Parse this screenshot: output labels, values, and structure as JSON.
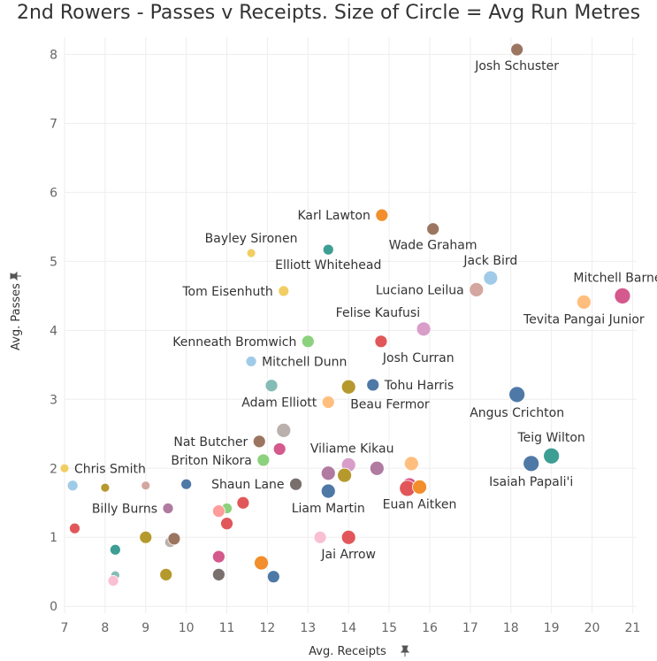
{
  "chart_data": {
    "type": "scatter",
    "title": "2nd Rowers - Passes v Receipts. Size of Circle = Avg Run Metres",
    "xlabel": "Avg. Receipts",
    "ylabel": "Avg. Passes",
    "axis_pin_icon": "pin-icon",
    "xlim": [
      7,
      21.1
    ],
    "ylim": [
      -0.1,
      8.25
    ],
    "xticks": [
      "7",
      "8",
      "9",
      "10",
      "11",
      "12",
      "13",
      "14",
      "15",
      "16",
      "17",
      "18",
      "19",
      "20",
      "21"
    ],
    "yticks": [
      "0",
      "1",
      "2",
      "3",
      "4",
      "5",
      "6",
      "7",
      "8"
    ],
    "grid": true,
    "points": [
      {
        "x": 18.15,
        "y": 8.07,
        "r": 7,
        "color": "#9c7561",
        "label": "Josh Schuster",
        "label_pos": "below"
      },
      {
        "x": 14.82,
        "y": 5.67,
        "r": 7,
        "color": "#f28e2b",
        "label": "Karl Lawton",
        "label_pos": "left"
      },
      {
        "x": 16.08,
        "y": 5.47,
        "r": 7,
        "color": "#9c7561",
        "label": "Wade Graham",
        "label_pos": "below"
      },
      {
        "x": 11.6,
        "y": 5.12,
        "r": 5,
        "color": "#f1ce63",
        "label": "Bayley Sironen",
        "label_pos": "above"
      },
      {
        "x": 13.5,
        "y": 5.17,
        "r": 6,
        "color": "#3d9e94",
        "label": "Elliott Whitehead",
        "label_pos": "below"
      },
      {
        "x": 17.5,
        "y": 4.76,
        "r": 8,
        "color": "#a0cbe8",
        "label": "Jack Bird",
        "label_pos": "above"
      },
      {
        "x": 17.15,
        "y": 4.59,
        "r": 8,
        "color": "#d4a6a0",
        "label": "Luciano Leilua",
        "label_pos": "left"
      },
      {
        "x": 20.75,
        "y": 4.5,
        "r": 9,
        "color": "#d4598c",
        "label": "Mitchell Barnett",
        "label_pos": "above"
      },
      {
        "x": 19.8,
        "y": 4.41,
        "r": 8,
        "color": "#ffbe7d",
        "label": "Tevita Pangai Junior",
        "label_pos": "below"
      },
      {
        "x": 12.4,
        "y": 4.57,
        "r": 6,
        "color": "#f1ce63",
        "label": "Tom Eisenhuth",
        "label_pos": "left"
      },
      {
        "x": 15.85,
        "y": 4.02,
        "r": 8,
        "color": "#d89ec9",
        "label": "Felise Kaufusi",
        "label_pos": "aboveleft"
      },
      {
        "x": 14.8,
        "y": 3.84,
        "r": 7,
        "color": "#e15759",
        "label": "Josh Curran",
        "label_pos": "belowright"
      },
      {
        "x": 13.0,
        "y": 3.84,
        "r": 7,
        "color": "#8cd17d",
        "label": "Kenneath Bromwich",
        "label_pos": "left"
      },
      {
        "x": 11.6,
        "y": 3.55,
        "r": 6,
        "color": "#a0cbe8",
        "label": "Mitchell Dunn",
        "label_pos": "right"
      },
      {
        "x": 14.6,
        "y": 3.21,
        "r": 7,
        "color": "#4e79a7",
        "label": "Tohu Harris",
        "label_pos": "right"
      },
      {
        "x": 14.0,
        "y": 3.18,
        "r": 8,
        "color": "#b6992d",
        "label": "Beau Fermor",
        "label_pos": "belowright"
      },
      {
        "x": 12.1,
        "y": 3.2,
        "r": 7,
        "color": "#86bcb6",
        "label": "",
        "label_pos": "none"
      },
      {
        "x": 13.5,
        "y": 2.96,
        "r": 7,
        "color": "#ffbe7d",
        "label": "Adam Elliott",
        "label_pos": "left"
      },
      {
        "x": 18.15,
        "y": 3.07,
        "r": 9,
        "color": "#4e79a7",
        "label": "Angus Crichton",
        "label_pos": "below"
      },
      {
        "x": 11.8,
        "y": 2.39,
        "r": 7,
        "color": "#9c7561",
        "label": "Nat Butcher",
        "label_pos": "left"
      },
      {
        "x": 12.4,
        "y": 2.55,
        "r": 8,
        "color": "#bab0ac",
        "label": "",
        "label_pos": "none"
      },
      {
        "x": 12.3,
        "y": 2.28,
        "r": 7,
        "color": "#d4598c",
        "label": "",
        "label_pos": "none"
      },
      {
        "x": 11.9,
        "y": 2.12,
        "r": 7,
        "color": "#8cd17d",
        "label": "Briton Nikora",
        "label_pos": "left"
      },
      {
        "x": 19.0,
        "y": 2.18,
        "r": 9,
        "color": "#3d9e94",
        "label": "Teig Wilton",
        "label_pos": "above"
      },
      {
        "x": 18.5,
        "y": 2.07,
        "r": 9,
        "color": "#4e79a7",
        "label": "Isaiah Papali'i",
        "label_pos": "below"
      },
      {
        "x": 14.0,
        "y": 2.05,
        "r": 8,
        "color": "#d89ec9",
        "label": "Viliame Kikau",
        "label_pos": "aboveright"
      },
      {
        "x": 13.5,
        "y": 1.93,
        "r": 8,
        "color": "#b07aa1",
        "label": "",
        "label_pos": "none"
      },
      {
        "x": 13.9,
        "y": 1.9,
        "r": 8,
        "color": "#b6992d",
        "label": "",
        "label_pos": "none"
      },
      {
        "x": 14.7,
        "y": 2.0,
        "r": 8,
        "color": "#b07aa1",
        "label": "",
        "label_pos": "none"
      },
      {
        "x": 15.55,
        "y": 2.07,
        "r": 8,
        "color": "#ffbe7d",
        "label": "",
        "label_pos": "none"
      },
      {
        "x": 15.5,
        "y": 1.76,
        "r": 8,
        "color": "#d4598c",
        "label": "",
        "label_pos": "none"
      },
      {
        "x": 15.45,
        "y": 1.71,
        "r": 9,
        "color": "#e15759",
        "label": "",
        "label_pos": "none"
      },
      {
        "x": 15.75,
        "y": 1.73,
        "r": 8,
        "color": "#f28e2b",
        "label": "Euan Aitken",
        "label_pos": "below"
      },
      {
        "x": 12.7,
        "y": 1.77,
        "r": 7,
        "color": "#79706e",
        "label": "Shaun Lane",
        "label_pos": "left"
      },
      {
        "x": 13.5,
        "y": 1.67,
        "r": 8,
        "color": "#4e79a7",
        "label": "Liam Martin",
        "label_pos": "below"
      },
      {
        "x": 7.0,
        "y": 2.0,
        "r": 5,
        "color": "#f1ce63",
        "label": "Chris Smith",
        "label_pos": "right"
      },
      {
        "x": 7.2,
        "y": 1.75,
        "r": 6,
        "color": "#a0cbe8",
        "label": "",
        "label_pos": "none"
      },
      {
        "x": 8.0,
        "y": 1.72,
        "r": 5,
        "color": "#b6992d",
        "label": "",
        "label_pos": "none"
      },
      {
        "x": 9.0,
        "y": 1.75,
        "r": 5,
        "color": "#d4a6a0",
        "label": "",
        "label_pos": "none"
      },
      {
        "x": 10.0,
        "y": 1.77,
        "r": 6,
        "color": "#4e79a7",
        "label": "",
        "label_pos": "none"
      },
      {
        "x": 9.55,
        "y": 1.42,
        "r": 6,
        "color": "#b07aa1",
        "label": "Billy Burns",
        "label_pos": "left"
      },
      {
        "x": 11.4,
        "y": 1.5,
        "r": 7,
        "color": "#e15759",
        "label": "",
        "label_pos": "none"
      },
      {
        "x": 11.0,
        "y": 1.42,
        "r": 6,
        "color": "#8cd17d",
        "label": "",
        "label_pos": "none"
      },
      {
        "x": 10.8,
        "y": 1.38,
        "r": 7,
        "color": "#ff9d9a",
        "label": "",
        "label_pos": "none"
      },
      {
        "x": 11.0,
        "y": 1.2,
        "r": 7,
        "color": "#e15759",
        "label": "",
        "label_pos": "none"
      },
      {
        "x": 7.25,
        "y": 1.13,
        "r": 6,
        "color": "#e15759",
        "label": "",
        "label_pos": "none"
      },
      {
        "x": 9.0,
        "y": 1.0,
        "r": 7,
        "color": "#b6992d",
        "label": "",
        "label_pos": "none"
      },
      {
        "x": 9.6,
        "y": 0.93,
        "r": 6,
        "color": "#bab0ac",
        "label": "",
        "label_pos": "none"
      },
      {
        "x": 9.7,
        "y": 0.98,
        "r": 7,
        "color": "#9c7561",
        "label": "",
        "label_pos": "none"
      },
      {
        "x": 8.25,
        "y": 0.82,
        "r": 6,
        "color": "#3d9e94",
        "label": "",
        "label_pos": "none"
      },
      {
        "x": 13.3,
        "y": 1.0,
        "r": 7,
        "color": "#fabfd2",
        "label": "",
        "label_pos": "none"
      },
      {
        "x": 14.0,
        "y": 1.0,
        "r": 8,
        "color": "#e15759",
        "label": "Jai Arrow",
        "label_pos": "below"
      },
      {
        "x": 10.8,
        "y": 0.72,
        "r": 7,
        "color": "#d4598c",
        "label": "",
        "label_pos": "none"
      },
      {
        "x": 11.85,
        "y": 0.63,
        "r": 8,
        "color": "#f28e2b",
        "label": "",
        "label_pos": "none"
      },
      {
        "x": 8.25,
        "y": 0.45,
        "r": 5,
        "color": "#86bcb6",
        "label": "",
        "label_pos": "none"
      },
      {
        "x": 8.2,
        "y": 0.37,
        "r": 6,
        "color": "#fabfd2",
        "label": "",
        "label_pos": "none"
      },
      {
        "x": 9.5,
        "y": 0.46,
        "r": 7,
        "color": "#b6992d",
        "label": "",
        "label_pos": "none"
      },
      {
        "x": 10.8,
        "y": 0.46,
        "r": 7,
        "color": "#79706e",
        "label": "",
        "label_pos": "none"
      },
      {
        "x": 12.15,
        "y": 0.43,
        "r": 7,
        "color": "#4e79a7",
        "label": "",
        "label_pos": "none"
      }
    ]
  }
}
